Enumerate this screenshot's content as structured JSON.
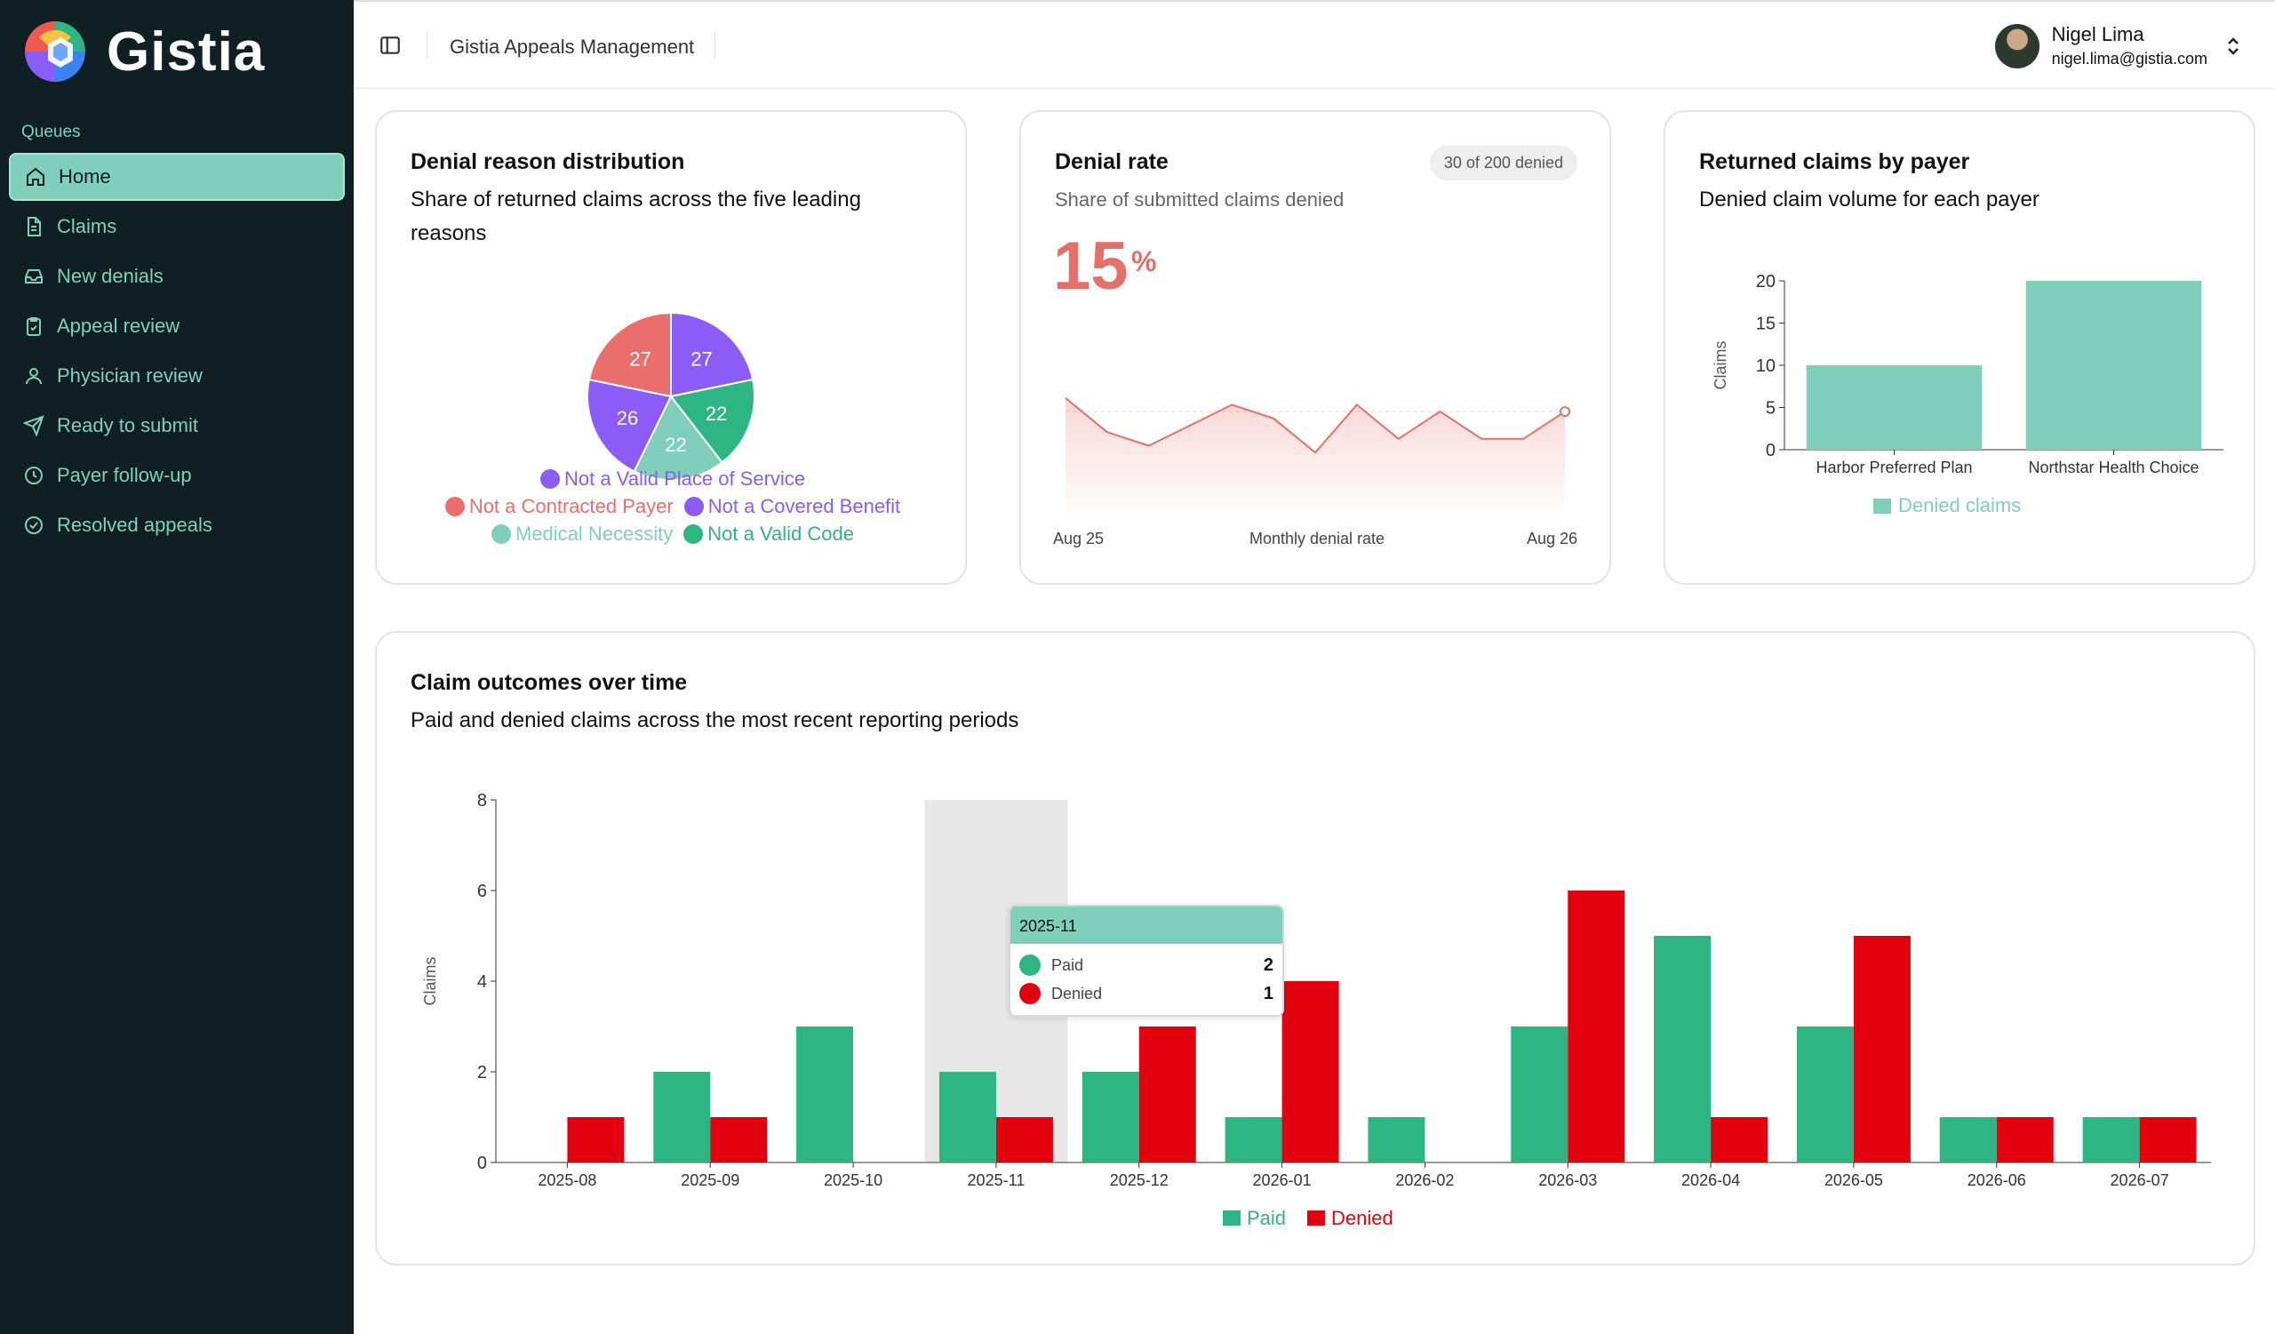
{
  "app": {
    "name": "Gistia"
  },
  "sidebar": {
    "section_label": "Queues",
    "items": [
      {
        "label": "Home",
        "icon": "home-icon",
        "active": true
      },
      {
        "label": "Claims",
        "icon": "document-icon"
      },
      {
        "label": "New denials",
        "icon": "inbox-icon"
      },
      {
        "label": "Appeal review",
        "icon": "clipboard-check-icon"
      },
      {
        "label": "Physician review",
        "icon": "user-icon"
      },
      {
        "label": "Ready to submit",
        "icon": "send-icon"
      },
      {
        "label": "Payer follow-up",
        "icon": "clock-icon"
      },
      {
        "label": "Resolved appeals",
        "icon": "check-circle-icon"
      }
    ]
  },
  "header": {
    "title": "Gistia Appeals Management",
    "user": {
      "name": "Nigel Lima",
      "email": "nigel.lima@gistia.com"
    }
  },
  "colors": {
    "accent": "#7fcfba",
    "paid": "#2db584",
    "denied": "#e3000f",
    "rate": "#e4706a"
  },
  "cards": {
    "denial_reasons": {
      "title": "Denial reason distribution",
      "subtitle": "Share of returned claims across the five leading reasons"
    },
    "denial_rate": {
      "title": "Denial rate",
      "badge": "30 of 200 denied",
      "subtitle": "Share of submitted claims denied",
      "value": "15",
      "unit": "%",
      "axis_start": "Aug 25",
      "axis_mid": "Monthly denial rate",
      "axis_end": "Aug 26"
    },
    "returned_by_payer": {
      "title": "Returned claims by payer",
      "subtitle": "Denied claim volume for each payer"
    },
    "outcomes": {
      "title": "Claim outcomes over time",
      "subtitle": "Paid and denied claims across the most recent reporting periods"
    }
  },
  "tooltip": {
    "period": "2025-11",
    "rows": [
      {
        "label": "Paid",
        "value": "2"
      },
      {
        "label": "Denied",
        "value": "1"
      }
    ]
  },
  "chart_data": [
    {
      "type": "pie",
      "title": "Denial reason distribution",
      "slices": [
        {
          "label": "Not a Valid Place of Service",
          "value": 27,
          "color": "#8b5cf6"
        },
        {
          "label": "Not a Contracted Payer",
          "value": 27,
          "color": "#ea6f6c"
        },
        {
          "label": "Not a Covered Benefit",
          "value": 26,
          "color": "#8b5cf6"
        },
        {
          "label": "Medical Necessity",
          "value": 22,
          "color": "#7fcfba"
        },
        {
          "label": "Not a Valid Code",
          "value": 22,
          "color": "#2db584"
        }
      ],
      "slice_order": [
        {
          "label": "Not a Valid Place of Service",
          "value": 27,
          "color": "#8b5cf6"
        },
        {
          "label": "Not a Valid Code",
          "value": 22,
          "color": "#2db584"
        },
        {
          "label": "Medical Necessity",
          "value": 22,
          "color": "#7fcfba"
        },
        {
          "label": "Not a Covered Benefit",
          "value": 26,
          "color": "#8b5cf6"
        },
        {
          "label": "Not a Contracted Payer",
          "value": 27,
          "color": "#ea6f6c"
        }
      ],
      "legend_rows": [
        [
          0
        ],
        [
          1,
          2
        ],
        [
          3,
          4
        ]
      ]
    },
    {
      "type": "line",
      "title": "Denial rate",
      "xlabel": "Monthly denial rate",
      "values": [
        18,
        13,
        11,
        14,
        17,
        15,
        10,
        17,
        12,
        16,
        12,
        12,
        16
      ],
      "ylim": [
        0,
        25
      ]
    },
    {
      "type": "bar",
      "title": "Returned claims by payer",
      "categories": [
        "Harbor Preferred Plan",
        "Northstar Health Choice"
      ],
      "values": [
        10,
        20
      ],
      "ylabel": "Claims",
      "ylim": [
        0,
        20
      ],
      "yticks": [
        0,
        5,
        10,
        15,
        20
      ],
      "series_name": "Denied claims",
      "color": "#7fcfba"
    },
    {
      "type": "bar",
      "title": "Claim outcomes over time",
      "categories": [
        "2025-08",
        "2025-09",
        "2025-10",
        "2025-11",
        "2025-12",
        "2026-01",
        "2026-02",
        "2026-03",
        "2026-04",
        "2026-05",
        "2026-06",
        "2026-07"
      ],
      "series": [
        {
          "name": "Paid",
          "values": [
            0,
            2,
            3,
            2,
            2,
            1,
            1,
            3,
            5,
            3,
            1,
            1
          ],
          "color": "#2db584"
        },
        {
          "name": "Denied",
          "values": [
            1,
            1,
            0,
            1,
            3,
            4,
            0,
            6,
            1,
            5,
            1,
            1
          ],
          "color": "#e3000f"
        }
      ],
      "ylabel": "Claims",
      "ylim": [
        0,
        8
      ],
      "yticks": [
        0,
        2,
        4,
        6,
        8
      ],
      "highlight": "2025-11"
    }
  ]
}
